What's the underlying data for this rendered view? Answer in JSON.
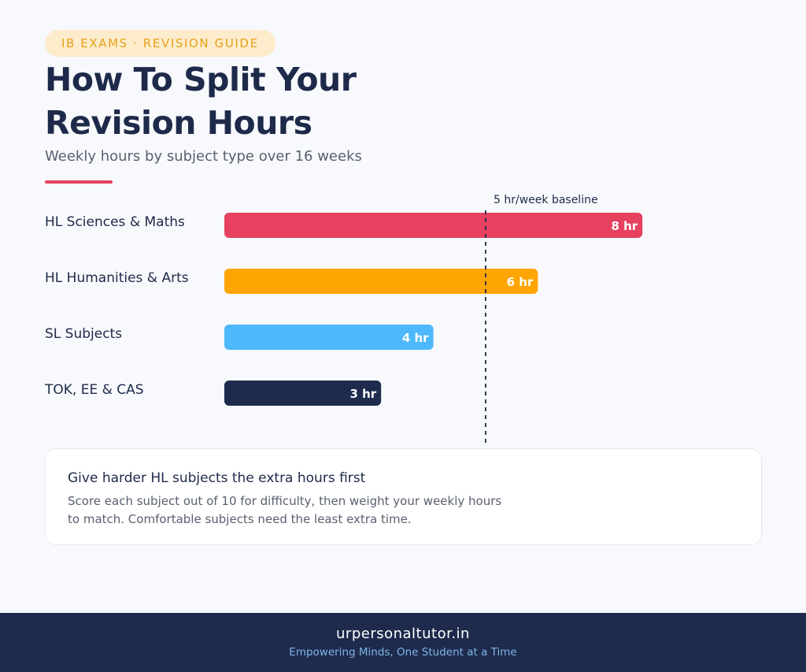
{
  "header": {
    "badge": "IB EXAMS · REVISION GUIDE",
    "title": "How To Split Your Revision Hours",
    "subtitle": "Weekly hours by subject type over 16 weeks"
  },
  "chart_data": {
    "type": "bar",
    "orientation": "horizontal",
    "title": "How To Split Your Revision Hours",
    "subtitle": "Weekly hours by subject type over 16 weeks",
    "categories": [
      "HL Sciences & Maths",
      "HL Humanities & Arts",
      "SL Subjects",
      "TOK, EE & CAS"
    ],
    "values": [
      8,
      6,
      4,
      3
    ],
    "value_labels": [
      "8 hr",
      "6 hr",
      "4 hr",
      "3 hr"
    ],
    "colors": [
      "#e6415f",
      "#ffa502",
      "#4db8fb",
      "#1e2b4d"
    ],
    "xlim": [
      0,
      8
    ],
    "reference_line": {
      "value": 5,
      "label": "5 hr/week baseline"
    },
    "grid": false,
    "legend": "none"
  },
  "callout": {
    "title": "Give harder HL subjects the extra hours first",
    "body": "Score each subject out of 10 for difficulty, then weight your weekly hours to match. Comfortable subjects need the least extra time."
  },
  "footer": {
    "brand": "urpersonaltutor.in",
    "tagline": "Empowering Minds, One Student at a Time"
  }
}
